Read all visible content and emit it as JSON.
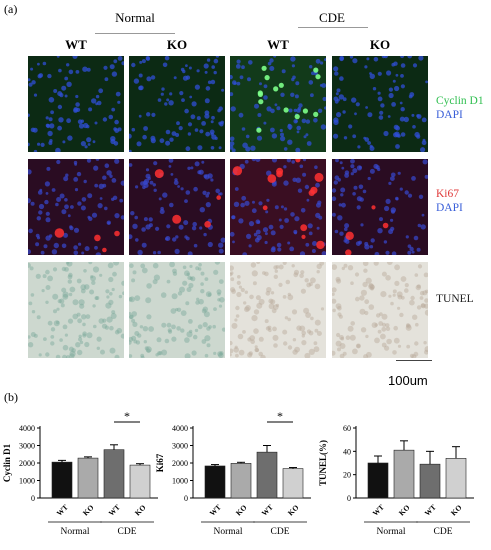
{
  "figure": {
    "panel_a_label": "(a)",
    "panel_b_label": "(b)",
    "groups": [
      "Normal",
      "CDE"
    ],
    "genotypes": [
      "WT",
      "KO",
      "WT",
      "KO"
    ],
    "stains": [
      {
        "line1": "Cyclin D1",
        "line2": "DAPI",
        "color1": "#2fbf4f",
        "color2": "#3a5fd8"
      },
      {
        "line1": "Ki67",
        "line2": "DAPI",
        "color1": "#e03a3a",
        "color2": "#3a5fd8"
      },
      {
        "line1": "TUNEL",
        "line2": "",
        "color1": "#222222",
        "color2": "#222222"
      }
    ],
    "scale_bar_label": "100um"
  },
  "chart_data": [
    {
      "type": "bar",
      "ylabel": "Cyclin D1",
      "categories": [
        "WT",
        "KO",
        "WT",
        "KO"
      ],
      "group_labels": [
        "Normal",
        "CDE"
      ],
      "values": [
        2050,
        2280,
        2760,
        1880
      ],
      "errors": [
        100,
        70,
        280,
        80
      ],
      "ylim": [
        0,
        4000
      ],
      "yticks": [
        "0",
        "1000",
        "2000",
        "3000",
        "4000"
      ],
      "bar_colors": [
        "#111111",
        "#aaaaaa",
        "#6e6e6e",
        "#d0d0d0"
      ],
      "significance": {
        "label": "*",
        "between": [
          2,
          3
        ]
      }
    },
    {
      "type": "bar",
      "ylabel": "Ki67",
      "categories": [
        "WT",
        "KO",
        "WT",
        "KO"
      ],
      "group_labels": [
        "Normal",
        "CDE"
      ],
      "values": [
        1830,
        1980,
        2620,
        1680
      ],
      "errors": [
        80,
        60,
        380,
        60
      ],
      "ylim": [
        0,
        4000
      ],
      "yticks": [
        "0",
        "1000",
        "2000",
        "3000",
        "4000"
      ],
      "bar_colors": [
        "#111111",
        "#aaaaaa",
        "#6e6e6e",
        "#d0d0d0"
      ],
      "significance": {
        "label": "*",
        "between": [
          2,
          3
        ]
      }
    },
    {
      "type": "bar",
      "ylabel": "TUNEL(%)",
      "categories": [
        "WT",
        "KO",
        "WT",
        "KO"
      ],
      "group_labels": [
        "Normal",
        "CDE"
      ],
      "values": [
        30,
        41,
        29,
        34
      ],
      "errors": [
        6,
        8,
        11,
        10
      ],
      "ylim": [
        0,
        60
      ],
      "yticks": [
        "0",
        "20",
        "40",
        "60"
      ],
      "bar_colors": [
        "#111111",
        "#aaaaaa",
        "#6e6e6e",
        "#d0d0d0"
      ],
      "significance": null
    }
  ]
}
